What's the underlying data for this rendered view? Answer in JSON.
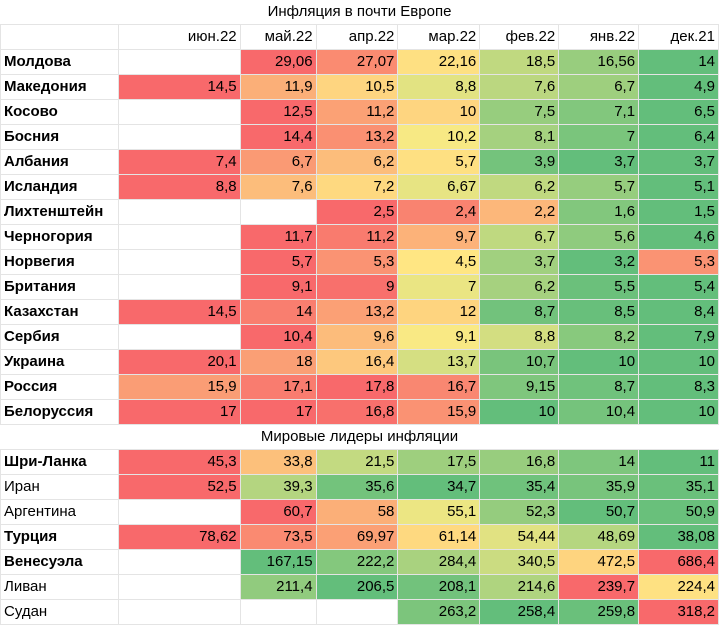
{
  "title": "Инфляция в почти Европе",
  "section2_title": "Мировые лидеры инфляции",
  "columns": [
    "июн.22",
    "май.22",
    "апр.22",
    "мар.22",
    "фев.22",
    "янв.22",
    "дек.21"
  ],
  "colors": {
    "red": "#F8696B",
    "orange": "#FBAA77",
    "yellow": "#FFEB84",
    "green": "#63BE7B"
  },
  "section1": [
    {
      "name": "Молдова",
      "bold": true,
      "values": [
        "",
        "29,06",
        "27,07",
        "22,16",
        "18,5",
        "16,56",
        "14"
      ]
    },
    {
      "name": "Македония",
      "bold": true,
      "values": [
        "14,5",
        "11,9",
        "10,5",
        "8,8",
        "7,6",
        "6,7",
        "4,9"
      ]
    },
    {
      "name": "Косово",
      "bold": true,
      "values": [
        "",
        "12,5",
        "11,2",
        "10",
        "7,5",
        "7,1",
        "6,5"
      ]
    },
    {
      "name": "Босния",
      "bold": true,
      "values": [
        "",
        "14,4",
        "13,2",
        "10,2",
        "8,1",
        "7",
        "6,4"
      ]
    },
    {
      "name": "Албания",
      "bold": true,
      "values": [
        "7,4",
        "6,7",
        "6,2",
        "5,7",
        "3,9",
        "3,7",
        "3,7"
      ]
    },
    {
      "name": "Исландия",
      "bold": true,
      "values": [
        "8,8",
        "7,6",
        "7,2",
        "6,67",
        "6,2",
        "5,7",
        "5,1"
      ]
    },
    {
      "name": "Лихтенштейн",
      "bold": true,
      "values": [
        "",
        "",
        "2,5",
        "2,4",
        "2,2",
        "1,6",
        "1,5"
      ]
    },
    {
      "name": "Черногория",
      "bold": true,
      "values": [
        "",
        "11,7",
        "11,2",
        "9,7",
        "6,7",
        "5,6",
        "4,6"
      ]
    },
    {
      "name": "Норвегия",
      "bold": true,
      "values": [
        "",
        "5,7",
        "5,3",
        "4,5",
        "3,7",
        "3,2",
        "5,3"
      ]
    },
    {
      "name": "Британия",
      "bold": true,
      "values": [
        "",
        "9,1",
        "9",
        "7",
        "6,2",
        "5,5",
        "5,4"
      ]
    },
    {
      "name": "Казахстан",
      "bold": true,
      "values": [
        "14,5",
        "14",
        "13,2",
        "12",
        "8,7",
        "8,5",
        "8,4"
      ]
    },
    {
      "name": "Сербия",
      "bold": true,
      "values": [
        "",
        "10,4",
        "9,6",
        "9,1",
        "8,8",
        "8,2",
        "7,9"
      ]
    },
    {
      "name": "Украина",
      "bold": true,
      "values": [
        "20,1",
        "18",
        "16,4",
        "13,7",
        "10,7",
        "10",
        "10"
      ]
    },
    {
      "name": "Россия",
      "bold": true,
      "values": [
        "15,9",
        "17,1",
        "17,8",
        "16,7",
        "9,15",
        "8,7",
        "8,3"
      ]
    },
    {
      "name": "Белоруссия",
      "bold": true,
      "values": [
        "17",
        "17",
        "16,8",
        "15,9",
        "10",
        "10,4",
        "10"
      ]
    }
  ],
  "section2": [
    {
      "name": "Шри-Ланка",
      "bold": true,
      "values": [
        "45,3",
        "33,8",
        "21,5",
        "17,5",
        "16,8",
        "14",
        "11"
      ]
    },
    {
      "name": "Иран",
      "bold": false,
      "values": [
        "52,5",
        "39,3",
        "35,6",
        "34,7",
        "35,4",
        "35,9",
        "35,1"
      ]
    },
    {
      "name": "Аргентина",
      "bold": false,
      "values": [
        "",
        "60,7",
        "58",
        "55,1",
        "52,3",
        "50,7",
        "50,9"
      ]
    },
    {
      "name": "Турция",
      "bold": true,
      "values": [
        "78,62",
        "73,5",
        "69,97",
        "61,14",
        "54,44",
        "48,69",
        "38,08"
      ]
    },
    {
      "name": "Венесуэла",
      "bold": true,
      "values": [
        "",
        "167,15",
        "222,2",
        "284,4",
        "340,5",
        "472,5",
        "686,4"
      ]
    },
    {
      "name": "Ливан",
      "bold": false,
      "values": [
        "",
        "211,4",
        "206,5",
        "208,1",
        "214,6",
        "239,7",
        "224,4"
      ]
    },
    {
      "name": "Судан",
      "bold": false,
      "values": [
        "",
        "",
        "",
        "263,2",
        "258,4",
        "259,8",
        "318,2"
      ]
    }
  ],
  "chart_data": {
    "type": "table",
    "title": "Инфляция в почти Европе",
    "columns": [
      "июн.22",
      "май.22",
      "апр.22",
      "мар.22",
      "фев.22",
      "янв.22",
      "дек.21"
    ]
  }
}
